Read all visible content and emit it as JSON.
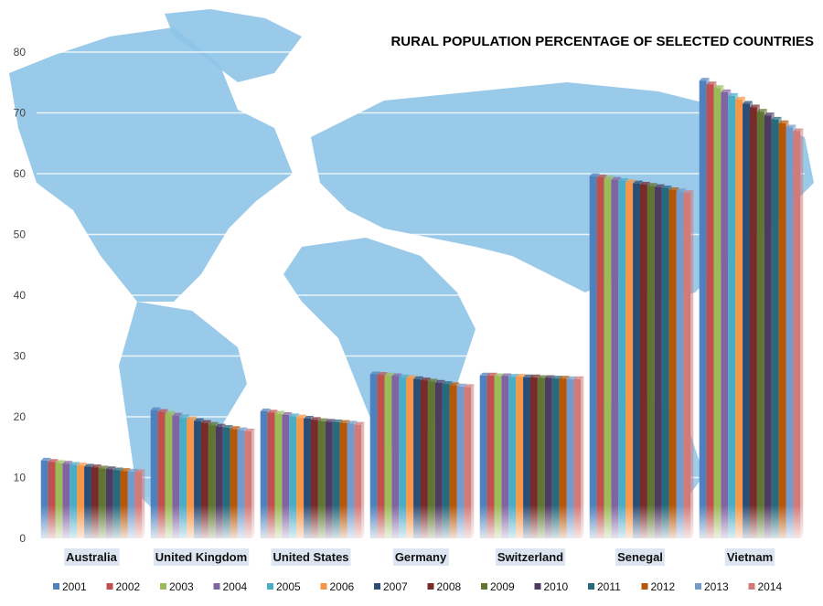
{
  "chart_data": {
    "type": "bar",
    "title": "RURAL POPULATION PERCENTAGE OF SELECTED COUNTRIES",
    "xlabel": "",
    "ylabel": "",
    "ylim": [
      0,
      80
    ],
    "yticks": [
      0,
      10,
      20,
      30,
      40,
      50,
      60,
      70,
      80
    ],
    "grid": true,
    "legend_position": "bottom",
    "categories": [
      "Australia",
      "United Kingdom",
      "United States",
      "Germany",
      "Switzerland",
      "Senegal",
      "Vietnam"
    ],
    "series": [
      {
        "name": "2001",
        "color": "#4f81bd",
        "values": [
          12.8,
          21.1,
          20.9,
          27.0,
          26.8,
          59.6,
          75.3
        ]
      },
      {
        "name": "2002",
        "color": "#c0504d",
        "values": [
          12.6,
          20.8,
          20.7,
          26.9,
          26.8,
          59.4,
          74.7
        ]
      },
      {
        "name": "2003",
        "color": "#9bbb59",
        "values": [
          12.4,
          20.5,
          20.5,
          26.8,
          26.7,
          59.2,
          74.1
        ]
      },
      {
        "name": "2004",
        "color": "#8064a2",
        "values": [
          12.3,
          20.2,
          20.3,
          26.7,
          26.7,
          59.0,
          73.4
        ]
      },
      {
        "name": "2005",
        "color": "#4bacc6",
        "values": [
          12.1,
          19.9,
          20.1,
          26.5,
          26.6,
          58.8,
          72.8
        ]
      },
      {
        "name": "2006",
        "color": "#f79646",
        "values": [
          12.0,
          19.6,
          19.9,
          26.4,
          26.6,
          58.6,
          72.2
        ]
      },
      {
        "name": "2007",
        "color": "#2c4d75",
        "values": [
          11.8,
          19.3,
          19.7,
          26.2,
          26.5,
          58.4,
          71.5
        ]
      },
      {
        "name": "2008",
        "color": "#772c2a",
        "values": [
          11.7,
          19.0,
          19.5,
          26.0,
          26.5,
          58.2,
          70.9
        ]
      },
      {
        "name": "2009",
        "color": "#5f7530",
        "values": [
          11.5,
          18.7,
          19.3,
          25.8,
          26.4,
          58.0,
          70.2
        ]
      },
      {
        "name": "2010",
        "color": "#4d3b62",
        "values": [
          11.4,
          18.4,
          19.2,
          25.6,
          26.4,
          57.8,
          69.6
        ]
      },
      {
        "name": "2011",
        "color": "#276a7c",
        "values": [
          11.2,
          18.2,
          19.1,
          25.4,
          26.3,
          57.6,
          68.9
        ]
      },
      {
        "name": "2012",
        "color": "#b65708",
        "values": [
          11.1,
          18.0,
          19.0,
          25.2,
          26.3,
          57.3,
          68.3
        ]
      },
      {
        "name": "2013",
        "color": "#729aca",
        "values": [
          11.0,
          17.8,
          18.9,
          25.0,
          26.2,
          57.1,
          67.6
        ]
      },
      {
        "name": "2014",
        "color": "#d07b79",
        "values": [
          10.9,
          17.6,
          18.7,
          24.9,
          26.2,
          56.8,
          67.0
        ]
      }
    ]
  }
}
